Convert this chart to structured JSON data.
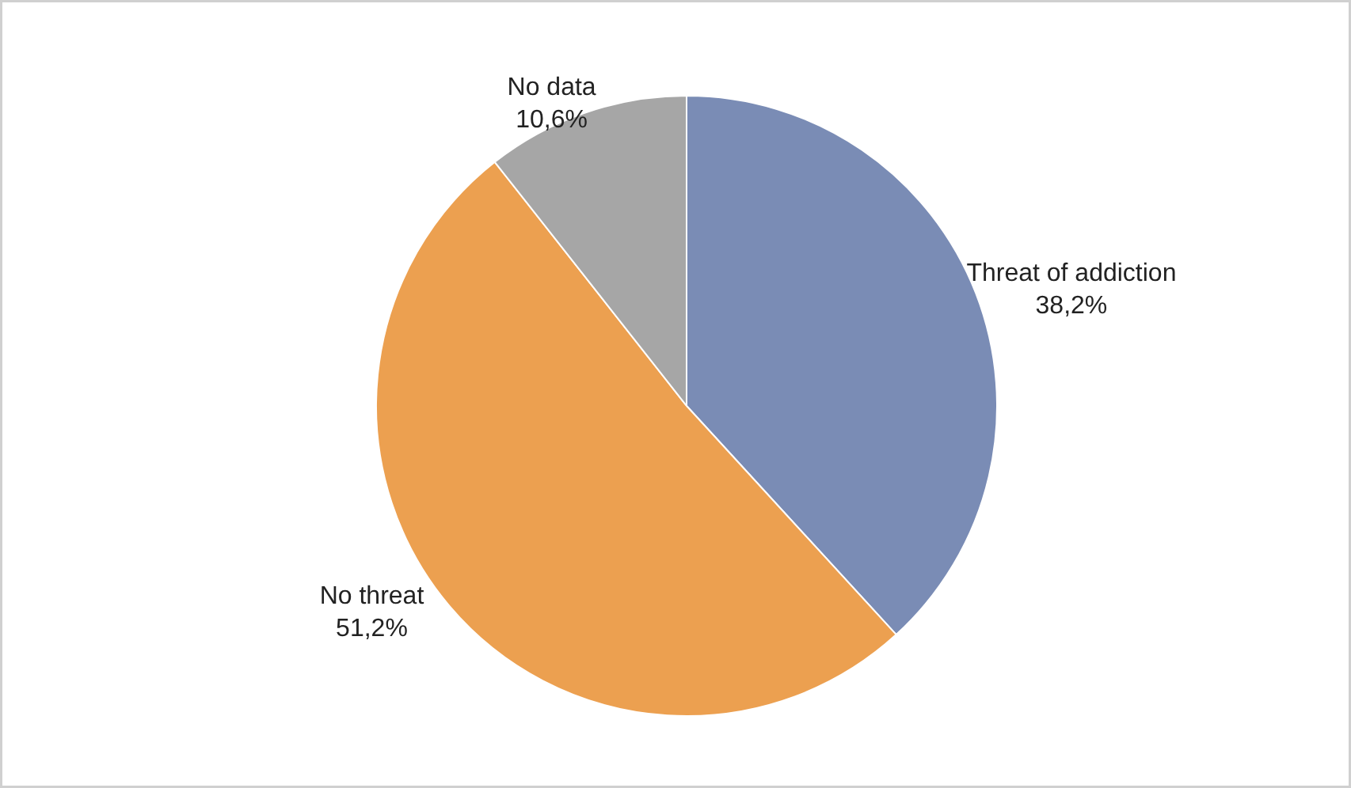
{
  "chart_data": {
    "type": "pie",
    "categories": [
      "Threat of addiction",
      "No threat",
      "No data"
    ],
    "values": [
      38.2,
      51.2,
      10.6
    ],
    "colors": [
      "#7a8cb5",
      "#eca050",
      "#a6a6a6"
    ],
    "value_labels": [
      "38,2%",
      "51,2%",
      "10,6%"
    ]
  }
}
